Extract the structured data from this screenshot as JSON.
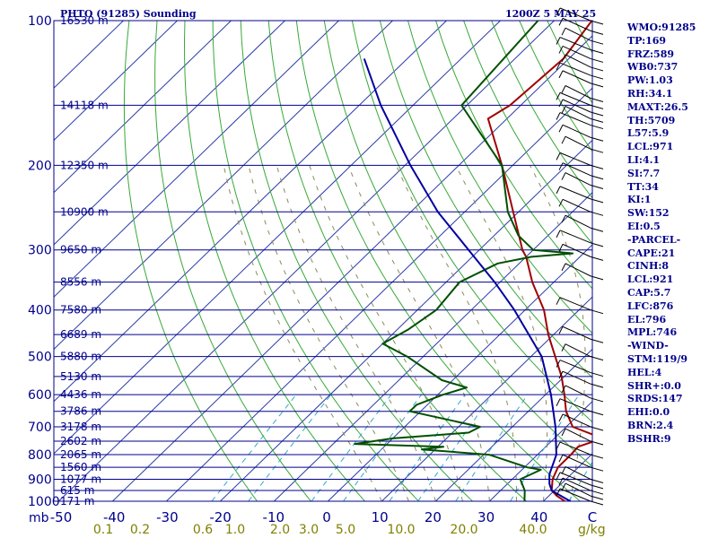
{
  "header": {
    "left": "PHTO (91285) Sounding",
    "right": "1200Z  5 MAY 25"
  },
  "indices": [
    "WMO:91285",
    "TP:169",
    "FRZ:589",
    "WB0:737",
    "PW:1.03",
    "RH:34.1",
    "MAXT:26.5",
    "TH:5709",
    "L57:5.9",
    "LCL:971",
    "LI:4.1",
    "SI:7.7",
    "TT:34",
    "KI:1",
    "SW:152",
    "EI:0.5",
    "-PARCEL-",
    "CAPE:21",
    "CINH:8",
    "LCL:921",
    "CAP:5.7",
    "LFC:876",
    "EL:796",
    "MPL:746",
    "-WIND-",
    "STM:119/9",
    "HEL:4",
    "SHR+:0.0",
    "SRDS:147",
    "EHI:0.0",
    "BRN:2.4",
    "BSHR:9"
  ],
  "chart_data": {
    "type": "line",
    "title": "PHTO (91285) Sounding",
    "chart_kind": "skew-T log-P",
    "y_scale": "log",
    "ylim": [
      1000,
      100
    ],
    "xlim": [
      -50,
      50
    ],
    "x_units": "°C",
    "pressure_levels": [
      100,
      200,
      300,
      400,
      500,
      600,
      700,
      800,
      900,
      1000
    ],
    "pressure_axis_unit": "mb",
    "height_labels": [
      {
        "p": 100,
        "h": "16530 m"
      },
      {
        "p": 150,
        "h": "14118 m"
      },
      {
        "p": 200,
        "h": "12350 m"
      },
      {
        "p": 250,
        "h": "10900 m"
      },
      {
        "p": 300,
        "h": "9650 m"
      },
      {
        "p": 350,
        "h": "8556 m"
      },
      {
        "p": 400,
        "h": "7580 m"
      },
      {
        "p": 450,
        "h": "6689 m"
      },
      {
        "p": 500,
        "h": "5880 m"
      },
      {
        "p": 550,
        "h": "5130 m"
      },
      {
        "p": 600,
        "h": "4436 m"
      },
      {
        "p": 650,
        "h": "3786 m"
      },
      {
        "p": 700,
        "h": "3178 m"
      },
      {
        "p": 750,
        "h": "2602 m"
      },
      {
        "p": 800,
        "h": "2065 m"
      },
      {
        "p": 850,
        "h": "1560 m"
      },
      {
        "p": 900,
        "h": "1077 m"
      },
      {
        "p": 950,
        "h": "615 m"
      },
      {
        "p": 1000,
        "h": "171 m"
      }
    ],
    "temp_ticks": [
      {
        "label": "-50",
        "v": -50
      },
      {
        "label": "-40",
        "v": -40
      },
      {
        "label": "-30",
        "v": -30
      },
      {
        "label": "-20",
        "v": -20
      },
      {
        "label": "-10",
        "v": -10
      },
      {
        "label": "0",
        "v": 0
      },
      {
        "label": "10",
        "v": 10
      },
      {
        "label": "20",
        "v": 20
      },
      {
        "label": "30",
        "v": 30
      },
      {
        "label": "40",
        "v": 40
      },
      {
        "label": "C",
        "v": 50
      }
    ],
    "mixing_ratio_labels": [
      "0.1",
      "0.2",
      "0.6",
      "1.0",
      "2.0",
      "3.0",
      "5.0",
      "10.0",
      "20.0",
      "40.0"
    ],
    "mixing_ratio_unit": "g/kg",
    "series": [
      {
        "color": "#a00000",
        "points": [
          {
            "p": 1000,
            "t": 24.0
          },
          {
            "p": 975,
            "t": 21.5
          },
          {
            "p": 950,
            "t": 19.5
          },
          {
            "p": 900,
            "t": 17.5
          },
          {
            "p": 850,
            "t": 16.2
          },
          {
            "p": 800,
            "t": 16.2
          },
          {
            "p": 770,
            "t": 16.0
          },
          {
            "p": 740,
            "t": 19.0
          },
          {
            "p": 700,
            "t": 11.2
          },
          {
            "p": 650,
            "t": 7.0
          },
          {
            "p": 600,
            "t": 3.5
          },
          {
            "p": 550,
            "t": -0.5
          },
          {
            "p": 500,
            "t": -5.5
          },
          {
            "p": 450,
            "t": -11.0
          },
          {
            "p": 400,
            "t": -16.5
          },
          {
            "p": 350,
            "t": -24.0
          },
          {
            "p": 310,
            "t": -30.0
          },
          {
            "p": 300,
            "t": -32.0
          },
          {
            "p": 250,
            "t": -41.0
          },
          {
            "p": 200,
            "t": -52.0
          },
          {
            "p": 160,
            "t": -63.5
          },
          {
            "p": 150,
            "t": -62.0
          },
          {
            "p": 120,
            "t": -61.0
          },
          {
            "p": 100,
            "t": -63.0
          }
        ]
      },
      {
        "color": "#005000",
        "points": [
          {
            "p": 1000,
            "t": 16.5
          },
          {
            "p": 950,
            "t": 14.5
          },
          {
            "p": 900,
            "t": 11.5
          },
          {
            "p": 860,
            "t": 13.5
          },
          {
            "p": 850,
            "t": 10.5
          },
          {
            "p": 800,
            "t": 1.0
          },
          {
            "p": 780,
            "t": -12.5
          },
          {
            "p": 770,
            "t": -9.0
          },
          {
            "p": 760,
            "t": -26.0
          },
          {
            "p": 740,
            "t": -20.0
          },
          {
            "p": 720,
            "t": -7.0
          },
          {
            "p": 700,
            "t": -6.0
          },
          {
            "p": 650,
            "t": -22.0
          },
          {
            "p": 630,
            "t": -22.0
          },
          {
            "p": 600,
            "t": -19.0
          },
          {
            "p": 580,
            "t": -16.0
          },
          {
            "p": 560,
            "t": -22.0
          },
          {
            "p": 500,
            "t": -33.0
          },
          {
            "p": 470,
            "t": -40.0
          },
          {
            "p": 440,
            "t": -38.0
          },
          {
            "p": 400,
            "t": -36.5
          },
          {
            "p": 350,
            "t": -37.5
          },
          {
            "p": 320,
            "t": -34.0
          },
          {
            "p": 310,
            "t": -29.0
          },
          {
            "p": 305,
            "t": -22.0
          },
          {
            "p": 300,
            "t": -30.0
          },
          {
            "p": 280,
            "t": -35.5
          },
          {
            "p": 250,
            "t": -42.0
          },
          {
            "p": 200,
            "t": -52.0
          },
          {
            "p": 150,
            "t": -71.0
          },
          {
            "p": 100,
            "t": -73.0
          }
        ]
      },
      {
        "color": "#0000a0",
        "points": [
          {
            "p": 1000,
            "t": 25.0
          },
          {
            "p": 950,
            "t": 19.5
          },
          {
            "p": 920,
            "t": 17.8
          },
          {
            "p": 880,
            "t": 16.0
          },
          {
            "p": 800,
            "t": 13.5
          },
          {
            "p": 700,
            "t": 8.0
          },
          {
            "p": 600,
            "t": 1.0
          },
          {
            "p": 500,
            "t": -8.0
          },
          {
            "p": 400,
            "t": -22.0
          },
          {
            "p": 350,
            "t": -31.0
          },
          {
            "p": 300,
            "t": -42.0
          },
          {
            "p": 250,
            "t": -55.0
          },
          {
            "p": 200,
            "t": -69.0
          },
          {
            "p": 150,
            "t": -86.0
          },
          {
            "p": 120,
            "t": -98.0
          }
        ]
      }
    ],
    "wind_pressures": [
      100,
      105,
      110,
      115,
      120,
      125,
      130,
      135,
      145,
      150,
      155,
      160,
      165,
      175,
      185,
      200,
      210,
      220,
      235,
      250,
      270,
      290,
      310,
      340,
      400,
      460,
      500,
      540,
      570,
      610,
      650,
      700,
      750,
      800,
      850,
      900,
      925,
      950,
      975,
      1000
    ]
  }
}
